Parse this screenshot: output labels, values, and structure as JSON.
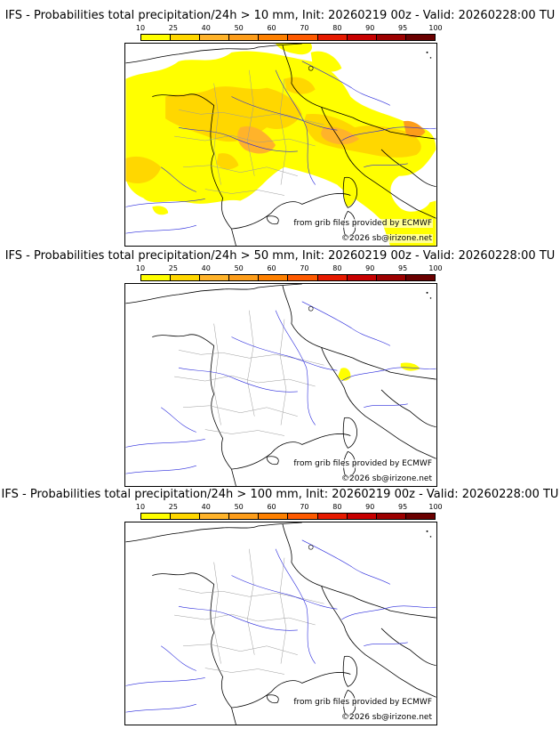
{
  "palette": {
    "levels": [
      "10",
      "25",
      "40",
      "50",
      "60",
      "70",
      "80",
      "90",
      "95",
      "100"
    ],
    "colors": [
      "#ffff00",
      "#ffd700",
      "#ffb32a",
      "#fd9d1a",
      "#fe8000",
      "#fe5a00",
      "#e61a00",
      "#c70000",
      "#9c0000",
      "#6a0000"
    ]
  },
  "panels": [
    {
      "title": "IFS - Probabilities total precipitation/24h > 10 mm, Init: 20260219 00z - Valid: 20260228:00 TU",
      "source_credit": "from grib files provided by ECMWF",
      "copyright": "©2026 sb@irizone.net"
    },
    {
      "title": "IFS - Probabilities total precipitation/24h > 50 mm, Init: 20260219 00z - Valid: 20260228:00 TU",
      "source_credit": "from grib files provided by ECMWF",
      "copyright": "©2026 sb@irizone.net"
    },
    {
      "title": "IFS - Probabilities total precipitation/24h > 100 mm, Init: 20260219 00z - Valid: 20260228:00 TU",
      "source_credit": "from grib files provided by ECMWF",
      "copyright": "©2026 sb@irizone.net"
    }
  ],
  "map_features": {
    "border_color": "#000000",
    "river_color": "#2a2adc",
    "admin_color": "#9a9a9a",
    "precip_levels": [
      "≥10 %",
      "≥25 %",
      "≥40 %",
      "≥60 %",
      "≥70 %"
    ]
  }
}
